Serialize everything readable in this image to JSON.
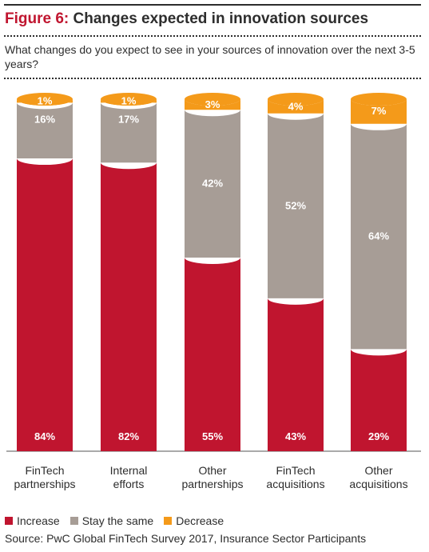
{
  "header": {
    "figure_label": "Figure 6:",
    "title": "Changes expected in innovation sources",
    "subtitle": "What changes do you expect to see in your sources of innovation over the next 3-5 years?"
  },
  "chart_data": {
    "type": "bar",
    "stacked": true,
    "categories": [
      [
        "FinTech",
        "partnerships"
      ],
      [
        "Internal",
        "efforts"
      ],
      [
        "Other",
        "partnerships"
      ],
      [
        "FinTech",
        "acquisitions"
      ],
      [
        "Other",
        "acquisitions"
      ]
    ],
    "series": [
      {
        "name": "Increase",
        "color": "#c0152f",
        "values": [
          84,
          82,
          55,
          43,
          29
        ]
      },
      {
        "name": "Stay the same",
        "color": "#a79d96",
        "values": [
          16,
          17,
          42,
          52,
          64
        ]
      },
      {
        "name": "Decrease",
        "color": "#f49a1a",
        "values": [
          1,
          1,
          3,
          4,
          7
        ]
      }
    ],
    "value_suffix": "%",
    "ylim": [
      0,
      100
    ],
    "grid": false,
    "legend_position": "bottom-left"
  },
  "legend": {
    "items": [
      {
        "label": "Increase",
        "color": "#c0152f"
      },
      {
        "label": "Stay the same",
        "color": "#a79d96"
      },
      {
        "label": "Decrease",
        "color": "#f49a1a"
      }
    ]
  },
  "footer": {
    "source": "Source: PwC Global FinTech Survey 2017, Insurance Sector Participants"
  }
}
